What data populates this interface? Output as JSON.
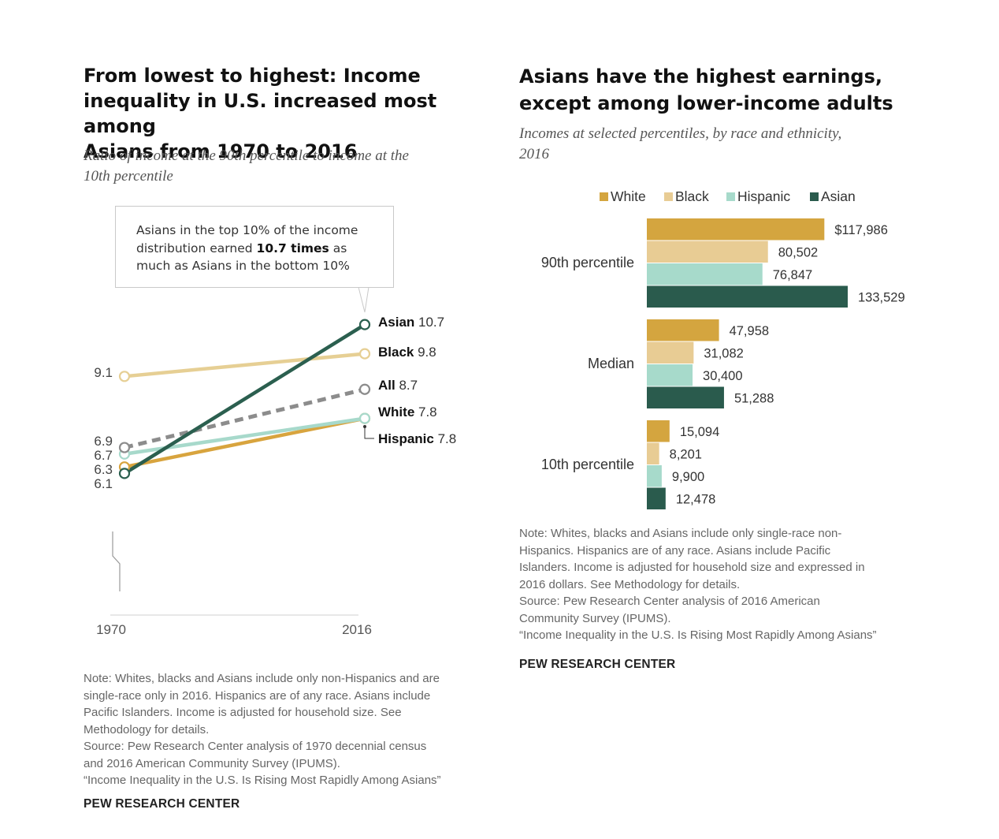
{
  "left": {
    "title_lines": [
      "From lowest to highest: Income",
      "inequality in U.S. increased most among",
      "Asians from 1970 to 2016"
    ],
    "subtitle_lines": [
      "Ratio of income at the 90th percentile to income at the",
      "10th percentile"
    ],
    "callout": {
      "line1": "Asians in the top 10% of the income",
      "line2_pre": "distribution earned ",
      "line2_bold": "10.7 times",
      "line2_post": " as",
      "line3": "much as Asians in the bottom 10%"
    },
    "note_lines": [
      "Note: Whites, blacks and Asians include only non-Hispanics and are",
      "single-race only in 2016. Hispanics are of any race. Asians include",
      "Pacific Islanders. Income is adjusted for household size. See",
      "Methodology for details.",
      "Source: Pew Research Center analysis of 1970 decennial census",
      "and 2016 American Community Survey (IPUMS).",
      "“Income Inequality in the U.S. Is Rising Most Rapidly Among Asians”"
    ],
    "brand": "PEW RESEARCH CENTER"
  },
  "right": {
    "title_lines": [
      "Asians have the highest earnings,",
      "except among lower-income adults"
    ],
    "subtitle_lines": [
      "Incomes at selected percentiles, by race and ethnicity,",
      "2016"
    ],
    "note_lines": [
      "Note: Whites, blacks and Asians include only single-race non-",
      "Hispanics. Hispanics are of any race. Asians include Pacific",
      "Islanders. Income is adjusted for household size and expressed in",
      "2016 dollars. See Methodology for details.",
      "Source: Pew Research Center analysis of 2016 American",
      "Community Survey (IPUMS).",
      "“Income Inequality in the U.S. Is Rising Most Rapidly Among Asians”"
    ],
    "brand": "PEW RESEARCH CENTER"
  },
  "chart_data": [
    {
      "type": "line",
      "x": [
        "1970",
        "2016"
      ],
      "series": [
        {
          "name": "Asian",
          "values": [
            6.1,
            10.7
          ],
          "start_label": "6.1",
          "end_label": "10.7",
          "color": "#2b5f4f",
          "dashed": false
        },
        {
          "name": "Black",
          "values": [
            9.1,
            9.8
          ],
          "start_label": "9.1",
          "end_label": "9.8",
          "color": "#e6cf94",
          "dashed": false
        },
        {
          "name": "All",
          "values": [
            6.9,
            8.7
          ],
          "start_label": "6.9",
          "end_label": "8.7",
          "color": "#8c8c8c",
          "dashed": true
        },
        {
          "name": "White",
          "values": [
            6.3,
            7.8
          ],
          "start_label": "6.3",
          "end_label": "7.8",
          "color": "#d8a43e",
          "dashed": false
        },
        {
          "name": "Hispanic",
          "values": [
            6.7,
            7.8
          ],
          "start_label": "6.7",
          "end_label": "7.8",
          "color": "#a7d9cb",
          "dashed": false
        }
      ],
      "axis_break": true,
      "grid": false
    },
    {
      "type": "bar",
      "orientation": "horizontal",
      "categories": [
        "90th percentile",
        "Median",
        "10th percentile"
      ],
      "series": [
        {
          "name": "White",
          "color": "#d4a53f",
          "values": [
            117986,
            47958,
            15094
          ],
          "labels": [
            "$117,986",
            "47,958",
            "15,094"
          ]
        },
        {
          "name": "Black",
          "color": "#e8cc94",
          "values": [
            80502,
            31082,
            8201
          ],
          "labels": [
            "80,502",
            "31,082",
            "8,201"
          ]
        },
        {
          "name": "Hispanic",
          "color": "#a7dacb",
          "values": [
            76847,
            30400,
            9900
          ],
          "labels": [
            "76,847",
            "30,400",
            "9,900"
          ]
        },
        {
          "name": "Asian",
          "color": "#2a5b4d",
          "values": [
            133529,
            51288,
            12478
          ],
          "labels": [
            "133,529",
            "51,288",
            "12,478"
          ]
        }
      ],
      "legend": "top",
      "grid": false
    }
  ]
}
